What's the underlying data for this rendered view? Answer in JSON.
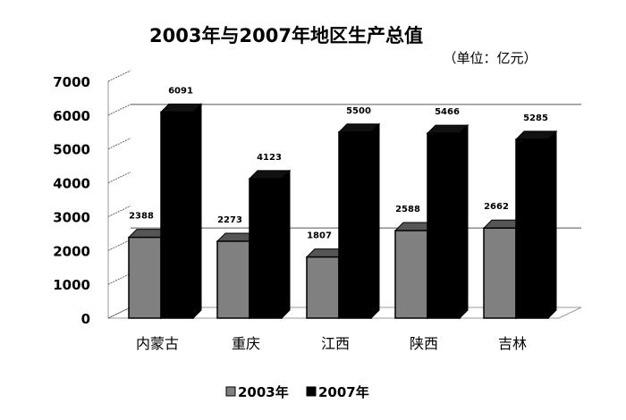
{
  "chart_data": {
    "type": "bar",
    "title": "2003年与2007年地区生产总值",
    "subtitle": "（单位：亿元）",
    "categories": [
      "内蒙古",
      "重庆",
      "江西",
      "陕西",
      "吉林"
    ],
    "series": [
      {
        "name": "2003年",
        "values": [
          2388,
          2273,
          1807,
          2588,
          2662
        ],
        "color": "#808080"
      },
      {
        "name": "2007年",
        "values": [
          6091,
          4123,
          5500,
          5466,
          5285
        ],
        "color": "#000000"
      }
    ],
    "ylim": [
      0,
      7000
    ],
    "yticks": [
      "0",
      "1000",
      "2000",
      "3000",
      "4000",
      "5000",
      "6000",
      "7000"
    ],
    "legend_position": "bottom",
    "style": "3d-clustered-column"
  }
}
